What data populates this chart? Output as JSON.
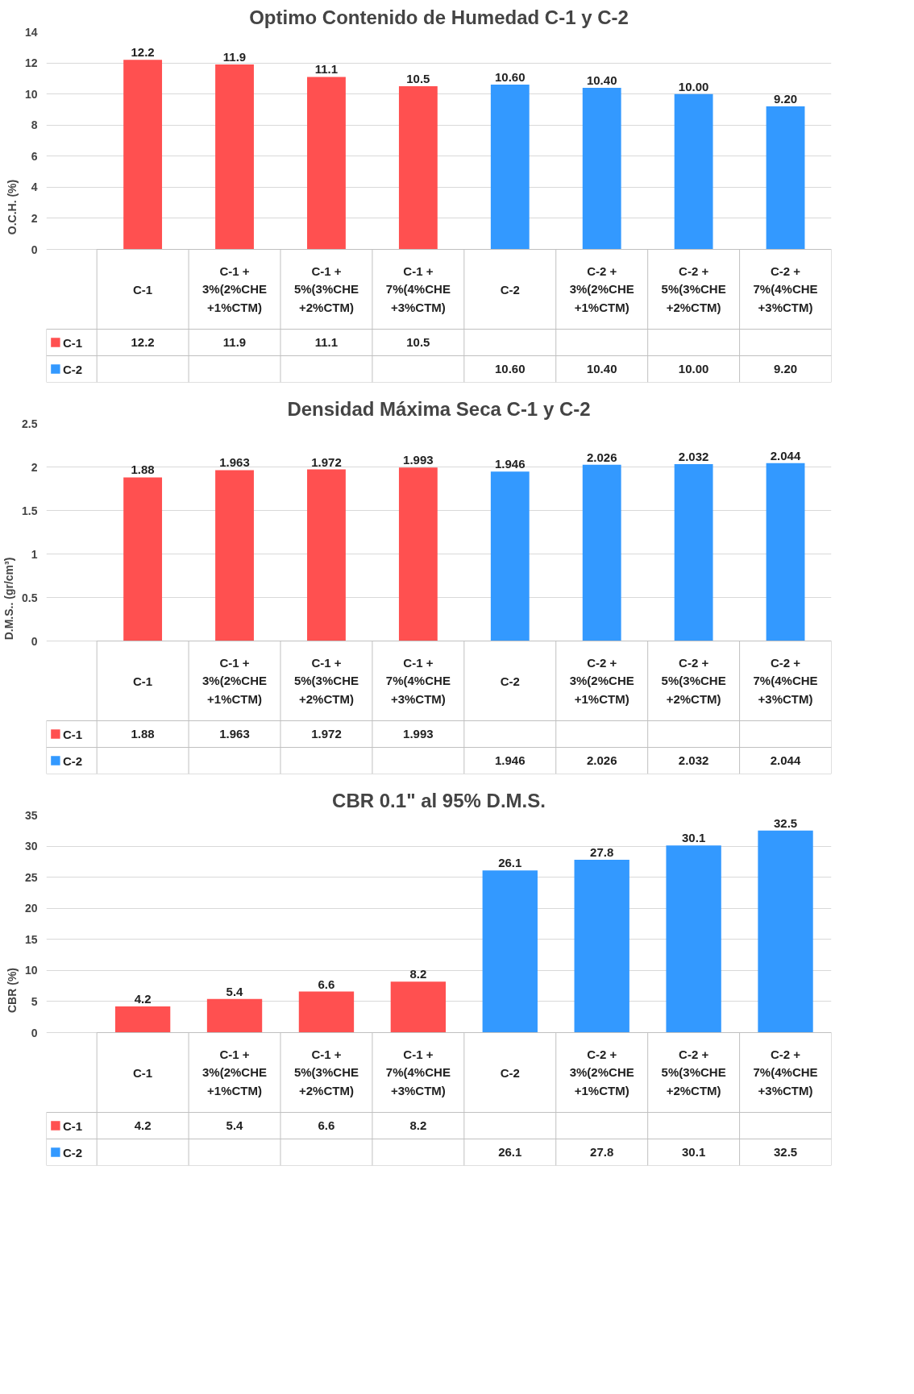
{
  "chart_data": [
    {
      "type": "bar",
      "title": "Optimo Contenido de Humedad C-1 y C-2",
      "ylabel": "O.C.H. (%)",
      "categories": [
        "C-1",
        "C-1 +\n3%(2%CHE\n+1%CTM)",
        "C-1 +\n5%(3%CHE\n+2%CTM)",
        "C-1 +\n7%(4%CHE\n+3%CTM)",
        "C-2",
        "C-2 +\n3%(2%CHE\n+1%CTM)",
        "C-2 +\n5%(3%CHE\n+2%CTM)",
        "C-2 +\n7%(4%CHE\n+3%CTM)"
      ],
      "series": [
        {
          "name": "C-1",
          "color": "#ff5050",
          "values": [
            12.2,
            11.9,
            11.1,
            10.5,
            null,
            null,
            null,
            null
          ],
          "value_labels": [
            "12.2",
            "11.9",
            "11.1",
            "10.5",
            null,
            null,
            null,
            null
          ]
        },
        {
          "name": "C-2",
          "color": "#3399ff",
          "values": [
            null,
            null,
            null,
            null,
            10.6,
            10.4,
            10.0,
            9.2
          ],
          "value_labels": [
            null,
            null,
            null,
            null,
            "10.60",
            "10.40",
            "10.00",
            "9.20"
          ]
        }
      ],
      "ylim": [
        0,
        14
      ],
      "yticks": [
        0,
        2,
        4,
        6,
        8,
        10,
        12,
        14
      ],
      "grid": "y",
      "legend": "bottom"
    },
    {
      "type": "bar",
      "title": "Densidad Máxima Seca C-1 y C-2",
      "ylabel": "D.M.S.. (gr/cm³)",
      "categories": [
        "C-1",
        "C-1 +\n3%(2%CHE\n+1%CTM)",
        "C-1 +\n5%(3%CHE\n+2%CTM)",
        "C-1 +\n7%(4%CHE\n+3%CTM)",
        "C-2",
        "C-2 +\n3%(2%CHE\n+1%CTM)",
        "C-2 +\n5%(3%CHE\n+2%CTM)",
        "C-2 +\n7%(4%CHE\n+3%CTM)"
      ],
      "series": [
        {
          "name": "C-1",
          "color": "#ff5050",
          "values": [
            1.88,
            1.963,
            1.972,
            1.993,
            null,
            null,
            null,
            null
          ],
          "value_labels": [
            "1.88",
            "1.963",
            "1.972",
            "1.993",
            null,
            null,
            null,
            null
          ]
        },
        {
          "name": "C-2",
          "color": "#3399ff",
          "values": [
            null,
            null,
            null,
            null,
            1.946,
            2.026,
            2.032,
            2.044
          ],
          "value_labels": [
            null,
            null,
            null,
            null,
            "1.946",
            "2.026",
            "2.032",
            "2.044"
          ]
        }
      ],
      "ylim": [
        0,
        2.5
      ],
      "yticks": [
        0,
        0.5,
        1,
        1.5,
        2,
        2.5
      ],
      "grid": "y",
      "legend": "bottom"
    },
    {
      "type": "bar",
      "title": "CBR 0.1\" al 95% D.M.S.",
      "ylabel": "CBR (%)",
      "categories": [
        "C-1",
        "C-1 +\n3%(2%CHE\n+1%CTM)",
        "C-1 +\n5%(3%CHE\n+2%CTM)",
        "C-1 +\n7%(4%CHE\n+3%CTM)",
        "C-2",
        "C-2 +\n3%(2%CHE\n+1%CTM)",
        "C-2 +\n5%(3%CHE\n+2%CTM)",
        "C-2 +\n7%(4%CHE\n+3%CTM)"
      ],
      "series": [
        {
          "name": "C-1",
          "color": "#ff5050",
          "values": [
            4.2,
            5.4,
            6.6,
            8.2,
            null,
            null,
            null,
            null
          ],
          "value_labels": [
            "4.2",
            "5.4",
            "6.6",
            "8.2",
            null,
            null,
            null,
            null
          ]
        },
        {
          "name": "C-2",
          "color": "#3399ff",
          "values": [
            null,
            null,
            null,
            null,
            26.1,
            27.8,
            30.1,
            32.5
          ],
          "value_labels": [
            null,
            null,
            null,
            null,
            "26.1",
            "27.8",
            "30.1",
            "32.5"
          ]
        }
      ],
      "ylim": [
        0,
        35
      ],
      "yticks": [
        0,
        5,
        10,
        15,
        20,
        25,
        30,
        35
      ],
      "grid": "y",
      "legend": "bottom"
    }
  ]
}
